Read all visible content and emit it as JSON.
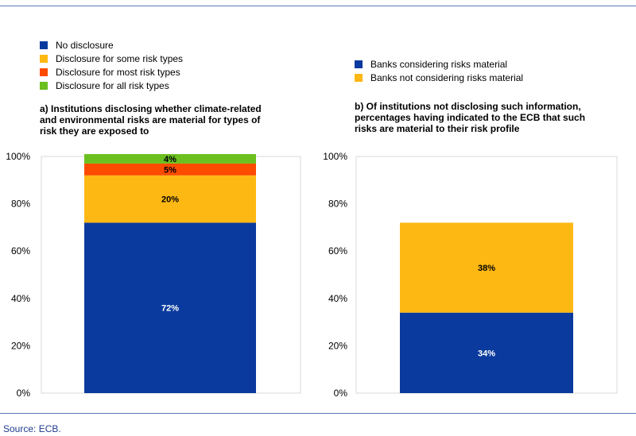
{
  "colors": {
    "blue": "#0a3a9e",
    "yellow": "#fdb813",
    "orange": "#ff4b00",
    "green": "#6bbf1f",
    "rule": "#5a78b5"
  },
  "legend_a": [
    {
      "label": "No disclosure",
      "color": "#0a3a9e"
    },
    {
      "label": "Disclosure for some risk types",
      "color": "#fdb813"
    },
    {
      "label": "Disclosure for most risk types",
      "color": "#ff4b00"
    },
    {
      "label": "Disclosure for all risk types",
      "color": "#6bbf1f"
    }
  ],
  "legend_b": [
    {
      "label": "Banks considering risks material",
      "color": "#0a3a9e"
    },
    {
      "label": "Banks not considering risks material",
      "color": "#fdb813"
    }
  ],
  "source": "Source: ECB.",
  "chart_data": [
    {
      "type": "bar",
      "stacked": true,
      "title": "a) Institutions disclosing whether climate-related and environmental risks are material for types of risk they are exposed to",
      "title_lines": [
        "a) Institutions disclosing whether climate-related",
        "and environmental risks are material for types of",
        "risk they are exposed to"
      ],
      "categories": [
        ""
      ],
      "yticks": [
        "0%",
        "20%",
        "40%",
        "60%",
        "80%",
        "100%"
      ],
      "ylim": [
        0,
        100
      ],
      "series": [
        {
          "name": "No disclosure",
          "values": [
            72
          ],
          "label": "72%",
          "color": "#0a3a9e",
          "label_color": "#ffffff"
        },
        {
          "name": "Disclosure for some risk types",
          "values": [
            20
          ],
          "label": "20%",
          "color": "#fdb813",
          "label_color": "#000000"
        },
        {
          "name": "Disclosure for most risk types",
          "values": [
            5
          ],
          "label": "5%",
          "color": "#ff4b00",
          "label_color": "#000000"
        },
        {
          "name": "Disclosure for all risk types",
          "values": [
            4
          ],
          "label": "4%",
          "color": "#6bbf1f",
          "label_color": "#000000"
        }
      ]
    },
    {
      "type": "bar",
      "stacked": true,
      "title": "b) Of institutions not disclosing such information, percentages having indicated to the ECB that such risks are material to their risk profile",
      "title_lines": [
        "b) Of institutions not disclosing such information,",
        "percentages having indicated to the ECB that such",
        "risks are material to their risk profile"
      ],
      "categories": [
        ""
      ],
      "yticks": [
        "0%",
        "20%",
        "40%",
        "60%",
        "80%",
        "100%"
      ],
      "ylim": [
        0,
        100
      ],
      "series": [
        {
          "name": "Banks considering risks material",
          "values": [
            34
          ],
          "label": "34%",
          "color": "#0a3a9e",
          "label_color": "#ffffff"
        },
        {
          "name": "Banks not considering risks material",
          "values": [
            38
          ],
          "label": "38%",
          "color": "#fdb813",
          "label_color": "#000000"
        }
      ]
    }
  ]
}
